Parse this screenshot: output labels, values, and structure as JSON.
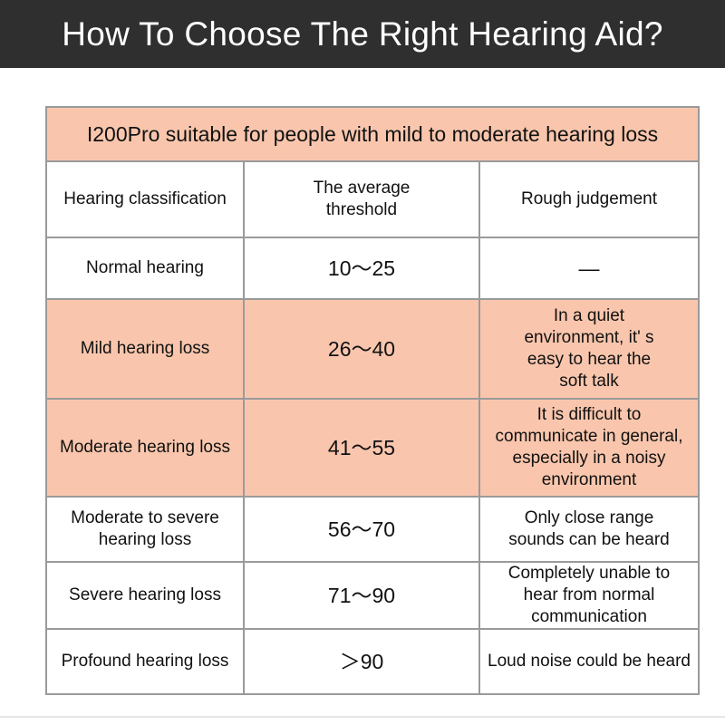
{
  "header": {
    "title": "How To Choose The Right Hearing Aid?"
  },
  "table": {
    "title": "I200Pro suitable for people with mild to moderate hearing loss",
    "columns": [
      "Hearing classification",
      "The average threshold",
      "Rough judgement"
    ],
    "rows": [
      {
        "classification": "Normal hearing",
        "threshold": "10～25",
        "judgement": "—",
        "highlighted": false
      },
      {
        "classification": "Mild hearing loss",
        "threshold": "26～40",
        "judgement": "In a quiet environment, it' s easy to hear the soft talk",
        "highlighted": true
      },
      {
        "classification": "Moderate hearing loss",
        "threshold": "41～55",
        "judgement": "It is difficult to communicate in general, especially in a noisy environment",
        "highlighted": true
      },
      {
        "classification": "Moderate to severe hearing loss",
        "threshold": "56～70",
        "judgement": "Only close range sounds can be heard",
        "highlighted": false
      },
      {
        "classification": "Severe hearing loss",
        "threshold": "71～90",
        "judgement": "Completely unable to hear from normal communication",
        "highlighted": false
      },
      {
        "classification": "Profound hearing loss",
        "threshold": "＞90",
        "judgement": "Loud noise could be heard",
        "highlighted": false
      }
    ]
  },
  "colors": {
    "header_bg": "#2f2f2f",
    "highlight": "#f9c6ad",
    "border": "#9a9a9a"
  }
}
